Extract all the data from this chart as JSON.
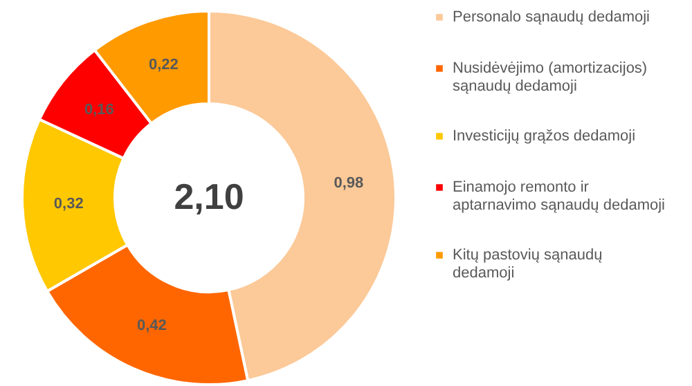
{
  "chart_data": {
    "type": "donut",
    "categories": [
      "Personalo sąnaudų dedamoji",
      "Nusidėvėjimo (amortizacijos) sąnaudų dedamoji",
      "Investicijų grąžos dedamoji",
      "Einamojo remonto ir aptarnavimo sąnaudų dedamoji",
      "Kitų pastovių sąnaudų dedamoji"
    ],
    "values": [
      0.98,
      0.42,
      0.32,
      0.16,
      0.22
    ],
    "value_labels": [
      "0,98",
      "0,42",
      "0,32",
      "0,16",
      "0,22"
    ],
    "colors": [
      "#fcc998",
      "#ff6600",
      "#ffc800",
      "#ff0000",
      "#ff9a00"
    ],
    "annotations": [
      "2,10"
    ],
    "legend": "right"
  }
}
